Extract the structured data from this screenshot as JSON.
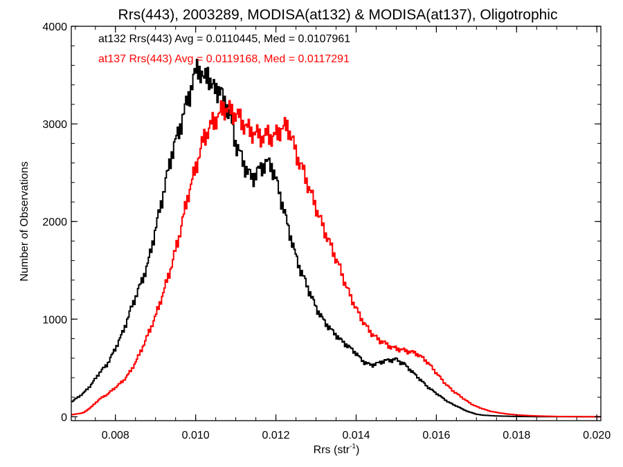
{
  "chart_data": {
    "type": "line",
    "title": "Rrs(443), 2003289, MODISA(at132) & MODISA(at137), Oligotrophic",
    "xlabel": {
      "base": "Rrs (str",
      "sup": "-1",
      "close": ")"
    },
    "ylabel": "Number of Observations",
    "xlim": [
      0.0069,
      0.0201
    ],
    "ylim": [
      -40,
      4000
    ],
    "x_major_ticks": [
      0.008,
      0.01,
      0.012,
      0.014,
      0.016,
      0.018,
      0.02
    ],
    "x_tick_labels": [
      "0.008",
      "0.010",
      "0.012",
      "0.014",
      "0.016",
      "0.018",
      "0.020"
    ],
    "y_major_ticks": [
      0,
      1000,
      2000,
      3000,
      4000
    ],
    "y_tick_labels": [
      "0",
      "1000",
      "2000",
      "3000",
      "4000"
    ],
    "x_minor_step": 0.0005,
    "y_minor_step": 200,
    "grid": false,
    "legend_position": "top-left",
    "annotations": [
      {
        "text": "at132 Rrs(443) Avg = 0.0110445, Med = 0.0107961",
        "color": "#000000"
      },
      {
        "text": "at137 Rrs(443) Avg = 0.0119168, Med = 0.0117291",
        "color": "#ff0000"
      }
    ],
    "series": [
      {
        "color": "#000000",
        "step": true,
        "points": [
          [
            0.0069,
            150
          ],
          [
            0.0072,
            240
          ],
          [
            0.0074,
            330
          ],
          [
            0.0076,
            450
          ],
          [
            0.0078,
            540
          ],
          [
            0.008,
            700
          ],
          [
            0.0082,
            880
          ],
          [
            0.0084,
            1120
          ],
          [
            0.0086,
            1330
          ],
          [
            0.0088,
            1550
          ],
          [
            0.009,
            1920
          ],
          [
            0.0092,
            2300
          ],
          [
            0.0094,
            2690
          ],
          [
            0.0096,
            2950
          ],
          [
            0.0098,
            3250
          ],
          [
            0.01,
            3520
          ],
          [
            0.01005,
            3620
          ],
          [
            0.0101,
            3560
          ],
          [
            0.0102,
            3420
          ],
          [
            0.0103,
            3560
          ],
          [
            0.0104,
            3350
          ],
          [
            0.0105,
            3380
          ],
          [
            0.0106,
            3340
          ],
          [
            0.0107,
            3250
          ],
          [
            0.0108,
            3160
          ],
          [
            0.0109,
            3000
          ],
          [
            0.011,
            2800
          ],
          [
            0.0111,
            2700
          ],
          [
            0.0112,
            2600
          ],
          [
            0.0113,
            2500
          ],
          [
            0.0114,
            2450
          ],
          [
            0.0115,
            2480
          ],
          [
            0.0116,
            2540
          ],
          [
            0.0117,
            2580
          ],
          [
            0.0118,
            2600
          ],
          [
            0.0119,
            2570
          ],
          [
            0.012,
            2430
          ],
          [
            0.0121,
            2280
          ],
          [
            0.0122,
            2120
          ],
          [
            0.0123,
            1950
          ],
          [
            0.0124,
            1800
          ],
          [
            0.0125,
            1640
          ],
          [
            0.0126,
            1520
          ],
          [
            0.0127,
            1420
          ],
          [
            0.0128,
            1320
          ],
          [
            0.0129,
            1220
          ],
          [
            0.013,
            1120
          ],
          [
            0.0131,
            1050
          ],
          [
            0.0132,
            980
          ],
          [
            0.0133,
            930
          ],
          [
            0.0134,
            880
          ],
          [
            0.0135,
            840
          ],
          [
            0.0136,
            790
          ],
          [
            0.0137,
            760
          ],
          [
            0.0138,
            720
          ],
          [
            0.0139,
            690
          ],
          [
            0.014,
            650
          ],
          [
            0.0141,
            600
          ],
          [
            0.0142,
            560
          ],
          [
            0.0143,
            540
          ],
          [
            0.0144,
            530
          ],
          [
            0.0145,
            540
          ],
          [
            0.0146,
            560
          ],
          [
            0.0147,
            570
          ],
          [
            0.0148,
            580
          ],
          [
            0.0149,
            580
          ],
          [
            0.015,
            590
          ],
          [
            0.0151,
            560
          ],
          [
            0.0152,
            540
          ],
          [
            0.0153,
            500
          ],
          [
            0.0154,
            460
          ],
          [
            0.0155,
            420
          ],
          [
            0.0156,
            380
          ],
          [
            0.0157,
            340
          ],
          [
            0.0158,
            300
          ],
          [
            0.0159,
            270
          ],
          [
            0.016,
            240
          ],
          [
            0.0161,
            210
          ],
          [
            0.0162,
            180
          ],
          [
            0.0163,
            150
          ],
          [
            0.0164,
            130
          ],
          [
            0.0165,
            110
          ],
          [
            0.0166,
            90
          ],
          [
            0.0167,
            70
          ],
          [
            0.0168,
            50
          ],
          [
            0.0169,
            40
          ],
          [
            0.017,
            25
          ],
          [
            0.0172,
            15
          ],
          [
            0.0175,
            8
          ],
          [
            0.018,
            3
          ],
          [
            0.0185,
            1
          ],
          [
            0.0201,
            0
          ]
        ]
      },
      {
        "color": "#ff0000",
        "step": true,
        "points": [
          [
            0.0069,
            20
          ],
          [
            0.0072,
            40
          ],
          [
            0.0074,
            100
          ],
          [
            0.0076,
            180
          ],
          [
            0.0078,
            230
          ],
          [
            0.008,
            300
          ],
          [
            0.0082,
            370
          ],
          [
            0.0084,
            480
          ],
          [
            0.0086,
            640
          ],
          [
            0.0088,
            830
          ],
          [
            0.009,
            1030
          ],
          [
            0.0092,
            1280
          ],
          [
            0.0094,
            1550
          ],
          [
            0.0096,
            1870
          ],
          [
            0.0098,
            2250
          ],
          [
            0.01,
            2550
          ],
          [
            0.0102,
            2850
          ],
          [
            0.0104,
            3000
          ],
          [
            0.0105,
            3050
          ],
          [
            0.0106,
            3100
          ],
          [
            0.0107,
            3170
          ],
          [
            0.0108,
            3150
          ],
          [
            0.0109,
            3120
          ],
          [
            0.011,
            3100
          ],
          [
            0.0111,
            3060
          ],
          [
            0.0112,
            3000
          ],
          [
            0.0113,
            2950
          ],
          [
            0.0114,
            2920
          ],
          [
            0.0115,
            2900
          ],
          [
            0.0116,
            2880
          ],
          [
            0.0117,
            2860
          ],
          [
            0.0118,
            2900
          ],
          [
            0.0119,
            2860
          ],
          [
            0.012,
            2880
          ],
          [
            0.0121,
            2940
          ],
          [
            0.0122,
            2960
          ],
          [
            0.0123,
            2980
          ],
          [
            0.0124,
            2850
          ],
          [
            0.0125,
            2700
          ],
          [
            0.0126,
            2600
          ],
          [
            0.0127,
            2500
          ],
          [
            0.0128,
            2380
          ],
          [
            0.0129,
            2260
          ],
          [
            0.013,
            2150
          ],
          [
            0.0131,
            2030
          ],
          [
            0.0132,
            1920
          ],
          [
            0.0133,
            1820
          ],
          [
            0.0134,
            1720
          ],
          [
            0.0135,
            1620
          ],
          [
            0.0136,
            1520
          ],
          [
            0.0137,
            1400
          ],
          [
            0.0138,
            1290
          ],
          [
            0.0139,
            1200
          ],
          [
            0.014,
            1110
          ],
          [
            0.0141,
            1030
          ],
          [
            0.0142,
            960
          ],
          [
            0.0143,
            900
          ],
          [
            0.0144,
            850
          ],
          [
            0.0145,
            810
          ],
          [
            0.0146,
            780
          ],
          [
            0.0147,
            760
          ],
          [
            0.0148,
            730
          ],
          [
            0.0149,
            710
          ],
          [
            0.015,
            700
          ],
          [
            0.0151,
            690
          ],
          [
            0.0152,
            680
          ],
          [
            0.0153,
            670
          ],
          [
            0.0154,
            660
          ],
          [
            0.0155,
            650
          ],
          [
            0.0156,
            620
          ],
          [
            0.0157,
            590
          ],
          [
            0.0158,
            550
          ],
          [
            0.0159,
            500
          ],
          [
            0.016,
            450
          ],
          [
            0.0161,
            400
          ],
          [
            0.0162,
            350
          ],
          [
            0.0163,
            310
          ],
          [
            0.0164,
            270
          ],
          [
            0.0165,
            240
          ],
          [
            0.0166,
            210
          ],
          [
            0.0167,
            180
          ],
          [
            0.0168,
            150
          ],
          [
            0.0169,
            125
          ],
          [
            0.017,
            105
          ],
          [
            0.0171,
            90
          ],
          [
            0.0172,
            75
          ],
          [
            0.0173,
            62
          ],
          [
            0.0174,
            52
          ],
          [
            0.0175,
            45
          ],
          [
            0.0176,
            38
          ],
          [
            0.0177,
            32
          ],
          [
            0.0178,
            27
          ],
          [
            0.0179,
            23
          ],
          [
            0.018,
            19
          ],
          [
            0.0182,
            14
          ],
          [
            0.0184,
            10
          ],
          [
            0.0186,
            7
          ],
          [
            0.0188,
            5
          ],
          [
            0.019,
            3
          ],
          [
            0.0195,
            1
          ],
          [
            0.0201,
            0
          ]
        ]
      }
    ]
  }
}
